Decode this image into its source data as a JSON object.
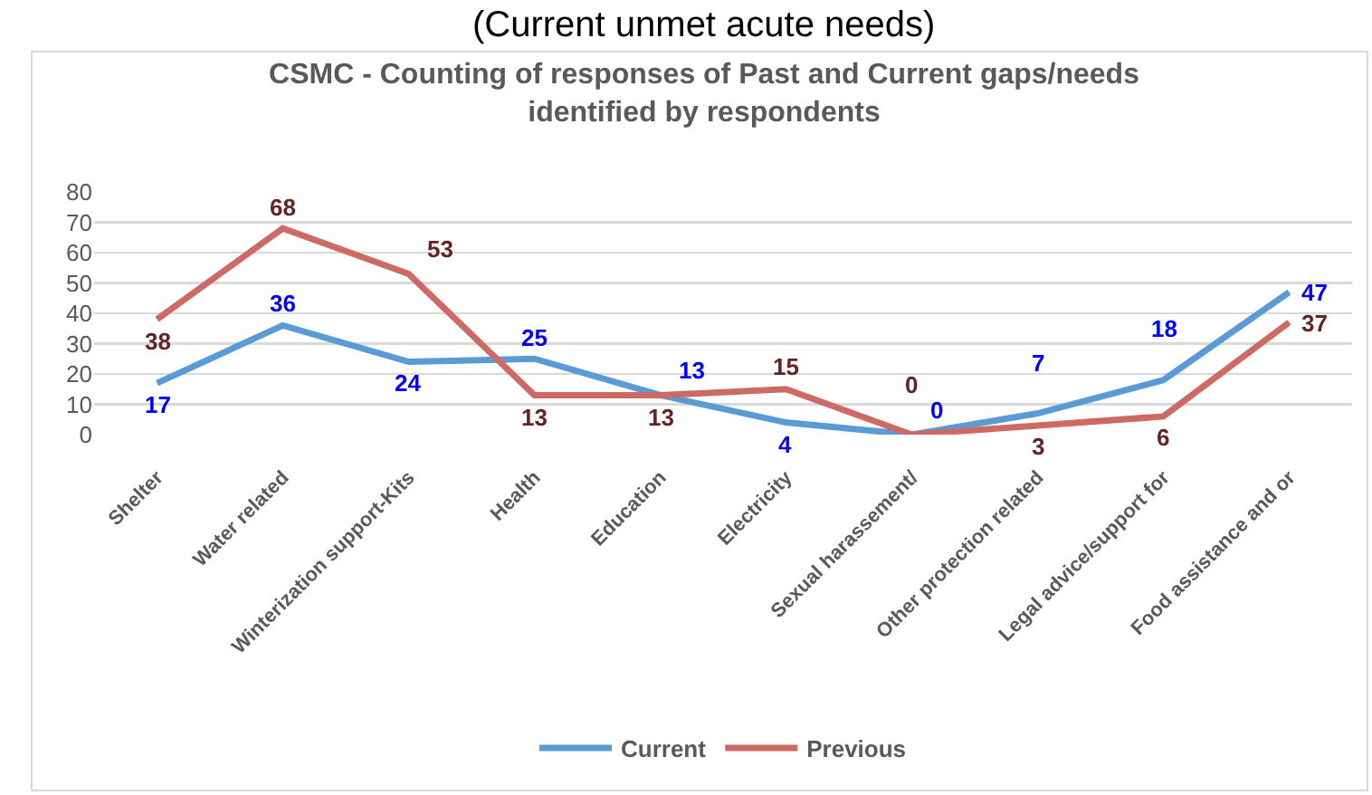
{
  "chart_data": {
    "type": "line",
    "title": "CSMC - Counting of responses of Past and Current gaps/needs identified by respondents",
    "annotations": [
      "(Current unmet acute needs)"
    ],
    "categories": [
      "Shelter",
      "Water related",
      "Winterization support-Kits",
      "Health",
      "Education",
      "Electricity",
      "Sexual harassement/",
      "Other protection related",
      "Legal advice/support for",
      "Food assistance and or"
    ],
    "series": [
      {
        "name": "Current",
        "color": "#5b9bd5",
        "values": [
          17,
          36,
          24,
          25,
          13,
          4,
          0,
          7,
          18,
          47
        ]
      },
      {
        "name": "Previous",
        "color": "#cd6a64",
        "values": [
          38,
          68,
          53,
          13,
          13,
          15,
          0,
          3,
          6,
          37
        ]
      }
    ],
    "ylim": [
      0,
      80
    ],
    "yticks": [
      0,
      10,
      20,
      30,
      40,
      50,
      60,
      70,
      80
    ],
    "grid": "y",
    "legend": "bottom",
    "marker": "none",
    "line_style": "solid",
    "data_labels": true
  }
}
